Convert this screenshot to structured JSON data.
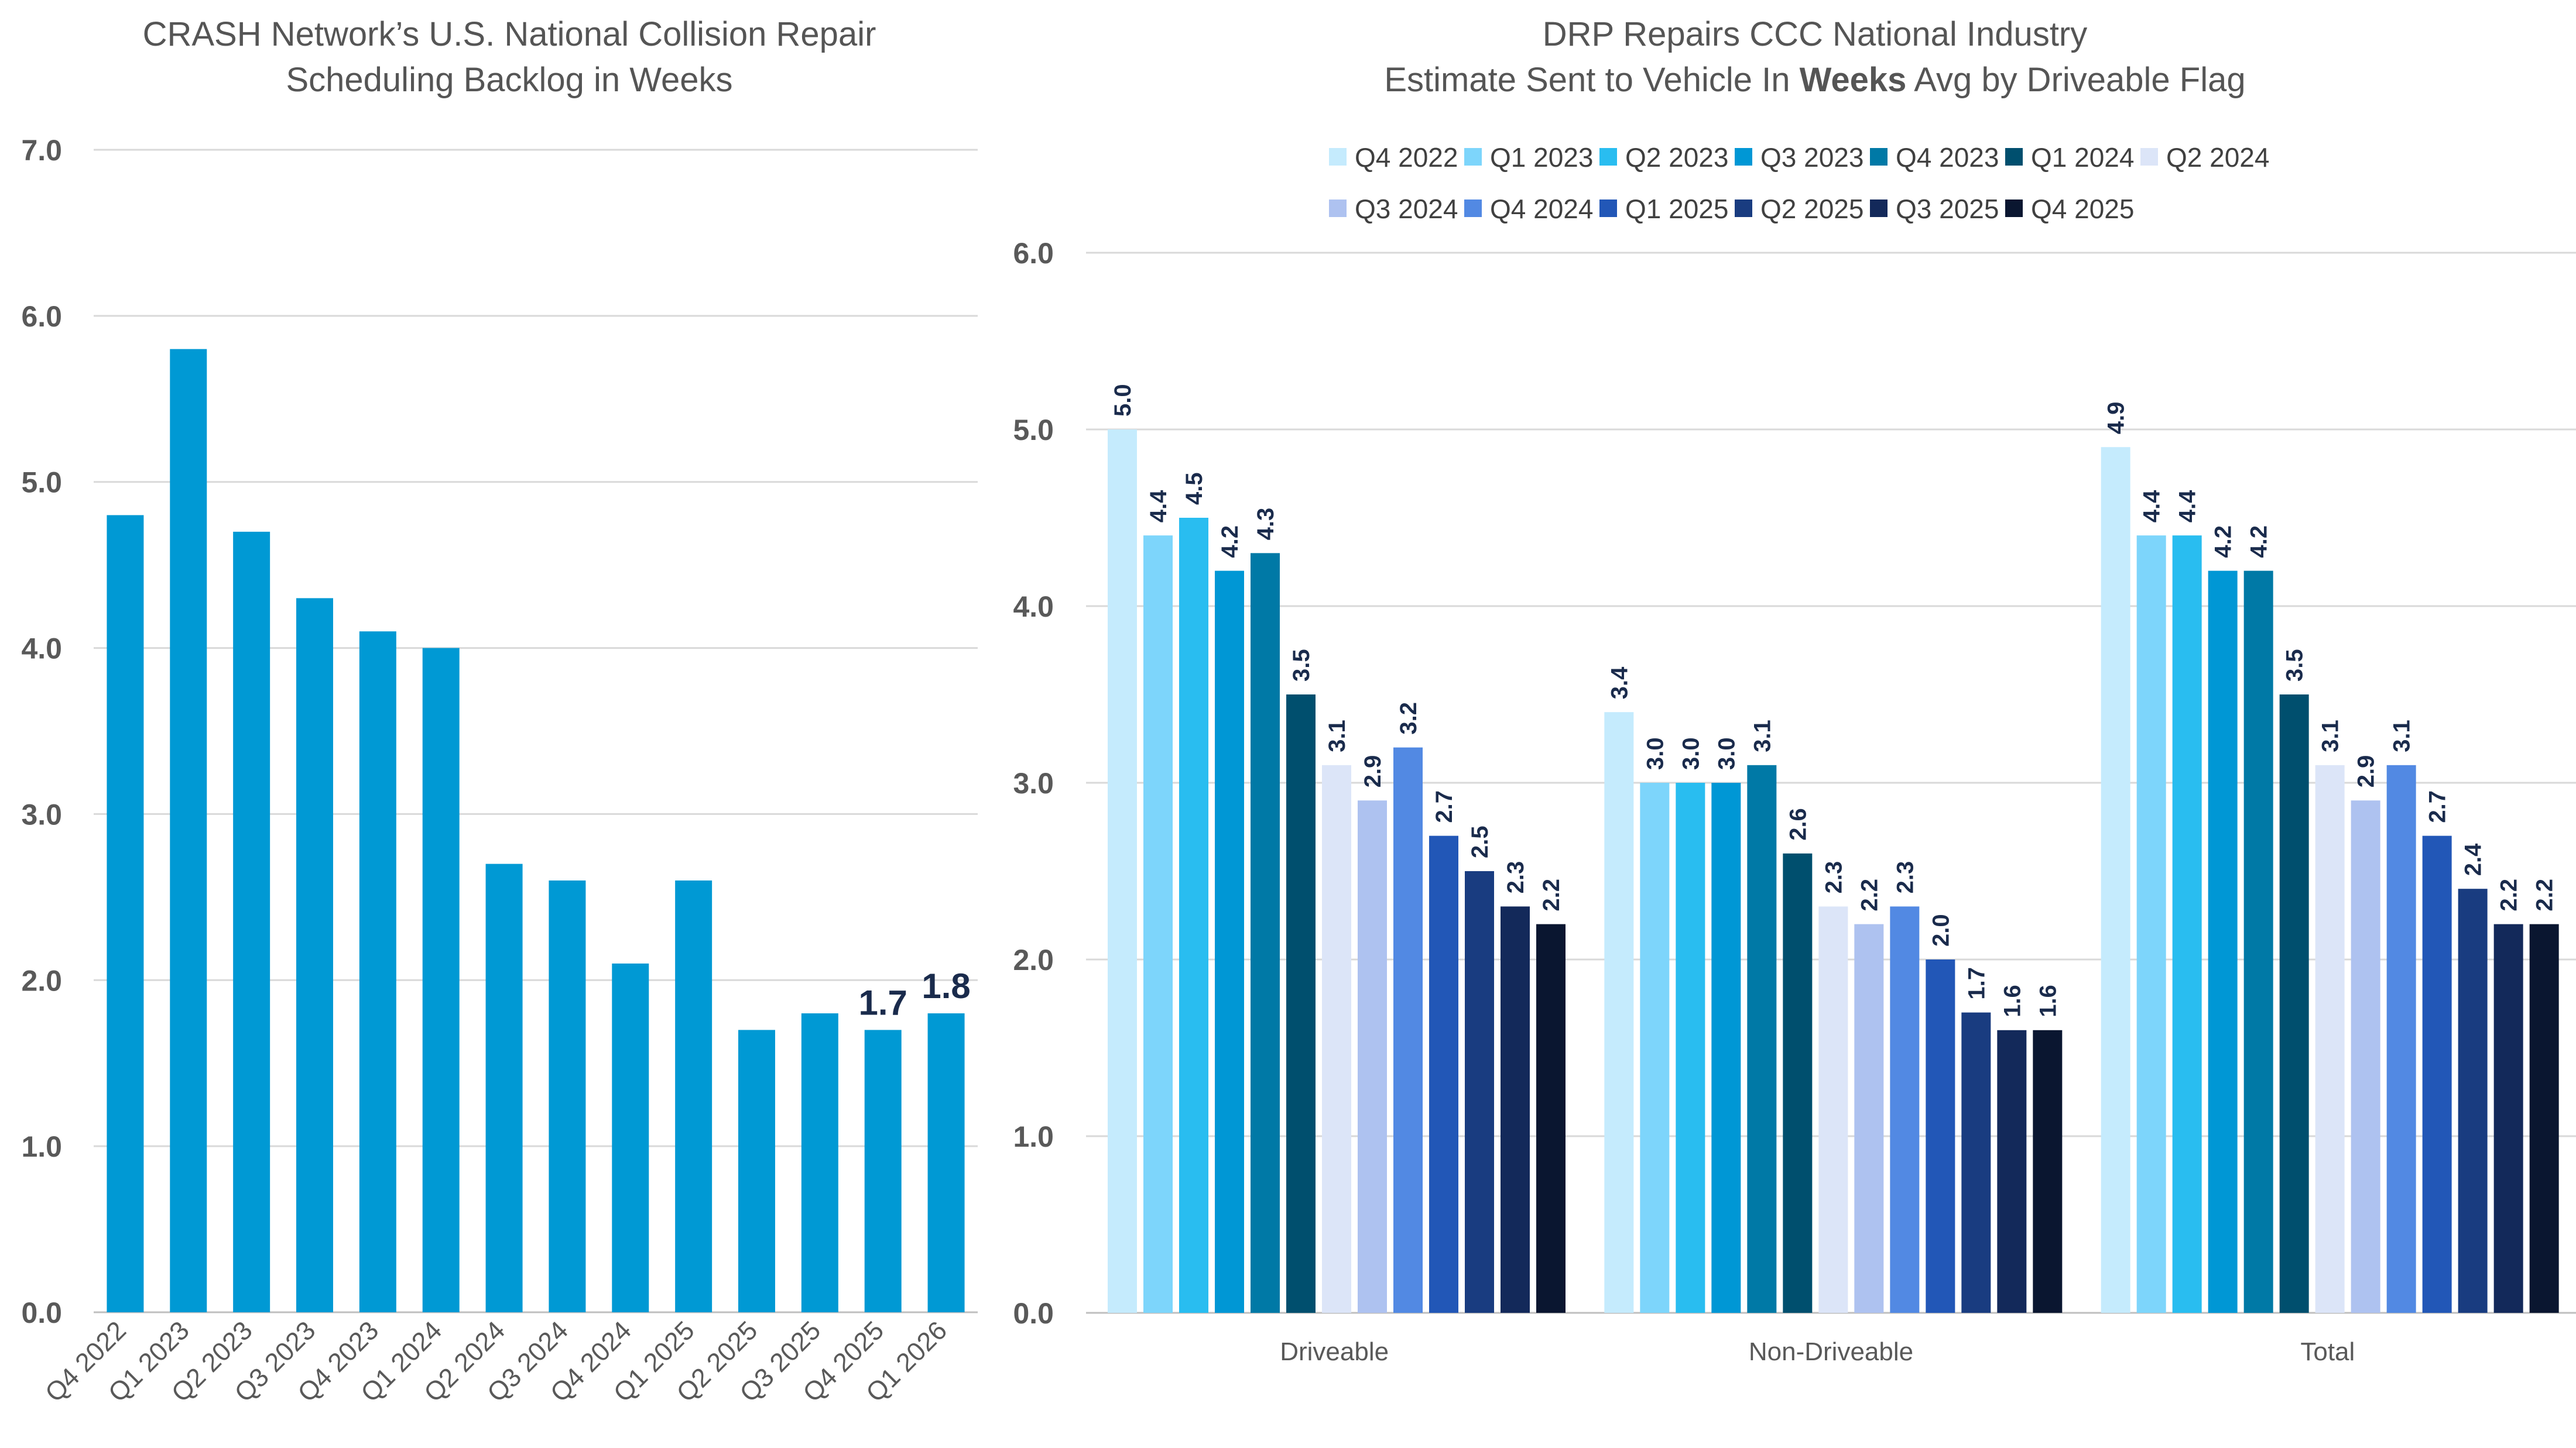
{
  "chart_data": [
    {
      "type": "bar",
      "title_lines": [
        "CRASH Network’s U.S. National Collision Repair",
        "Scheduling Backlog  in Weeks"
      ],
      "categories": [
        "Q4 2022",
        "Q1 2023",
        "Q2 2023",
        "Q3 2023",
        "Q4 2023",
        "Q1 2024",
        "Q2 2024",
        "Q3 2024",
        "Q4 2024",
        "Q1 2025",
        "Q2 2025",
        "Q3 2025",
        "Q4 2025",
        "Q1 2026"
      ],
      "values": [
        4.8,
        5.8,
        4.7,
        4.3,
        4.1,
        4.0,
        2.7,
        2.6,
        2.1,
        2.6,
        1.7,
        1.8,
        1.7,
        1.8
      ],
      "data_labels": [
        {
          "index": 12,
          "text": "1.7"
        },
        {
          "index": 13,
          "text": "1.8"
        }
      ],
      "yticks": [
        "0.0",
        "1.0",
        "2.0",
        "3.0",
        "4.0",
        "5.0",
        "6.0",
        "7.0"
      ],
      "ylim": [
        0,
        7
      ],
      "grid": true,
      "color": "#0099d4"
    },
    {
      "type": "bar",
      "title_lines": [
        [
          {
            "text": "DRP Repairs CCC National Industry",
            "bold": false
          }
        ],
        [
          {
            "text": "Estimate Sent to Vehicle In ",
            "bold": false
          },
          {
            "text": "Weeks",
            "bold": true
          },
          {
            "text": " Avg by Driveable Flag",
            "bold": false
          }
        ]
      ],
      "categories": [
        "Driveable",
        "Non-Driveable",
        "Total"
      ],
      "series": [
        {
          "name": "Q4 2022",
          "color": "#c5ebfd",
          "values": [
            5.0,
            3.4,
            4.9
          ]
        },
        {
          "name": "Q1 2023",
          "color": "#7dd5fb",
          "values": [
            4.4,
            3.0,
            4.4
          ]
        },
        {
          "name": "Q2 2023",
          "color": "#29bdf0",
          "values": [
            4.5,
            3.0,
            4.4
          ]
        },
        {
          "name": "Q3 2023",
          "color": "#0097d5",
          "values": [
            4.2,
            3.0,
            4.2
          ]
        },
        {
          "name": "Q4 2023",
          "color": "#0079a6",
          "values": [
            4.3,
            3.1,
            4.2
          ]
        },
        {
          "name": "Q1 2024",
          "color": "#004f6e",
          "values": [
            3.5,
            2.6,
            3.5
          ]
        },
        {
          "name": "Q2 2024",
          "color": "#dce5f8",
          "values": [
            3.1,
            2.3,
            3.1
          ]
        },
        {
          "name": "Q3 2024",
          "color": "#aec2f0",
          "values": [
            2.9,
            2.2,
            2.9
          ]
        },
        {
          "name": "Q4 2024",
          "color": "#5289e3",
          "values": [
            3.2,
            2.3,
            3.1
          ]
        },
        {
          "name": "Q1 2025",
          "color": "#2257b7",
          "values": [
            2.7,
            2.0,
            2.7
          ]
        },
        {
          "name": "Q2 2025",
          "color": "#193c80",
          "values": [
            2.5,
            1.7,
            2.4
          ]
        },
        {
          "name": "Q3 2025",
          "color": "#13295a",
          "values": [
            2.3,
            1.6,
            2.2
          ]
        },
        {
          "name": "Q4 2025",
          "color": "#0a1630",
          "values": [
            2.2,
            1.6,
            2.2
          ]
        }
      ],
      "yticks": [
        "0.0",
        "1.0",
        "2.0",
        "3.0",
        "4.0",
        "5.0",
        "6.0"
      ],
      "ylim": [
        0,
        6
      ],
      "grid": true,
      "legend_position": "top"
    }
  ],
  "colors": {
    "title": "#555555",
    "axis_text": "#595959",
    "gridline": "#d9d9d9",
    "data_label": "#1a2b4c",
    "axis_line": "#bfbfbf"
  }
}
